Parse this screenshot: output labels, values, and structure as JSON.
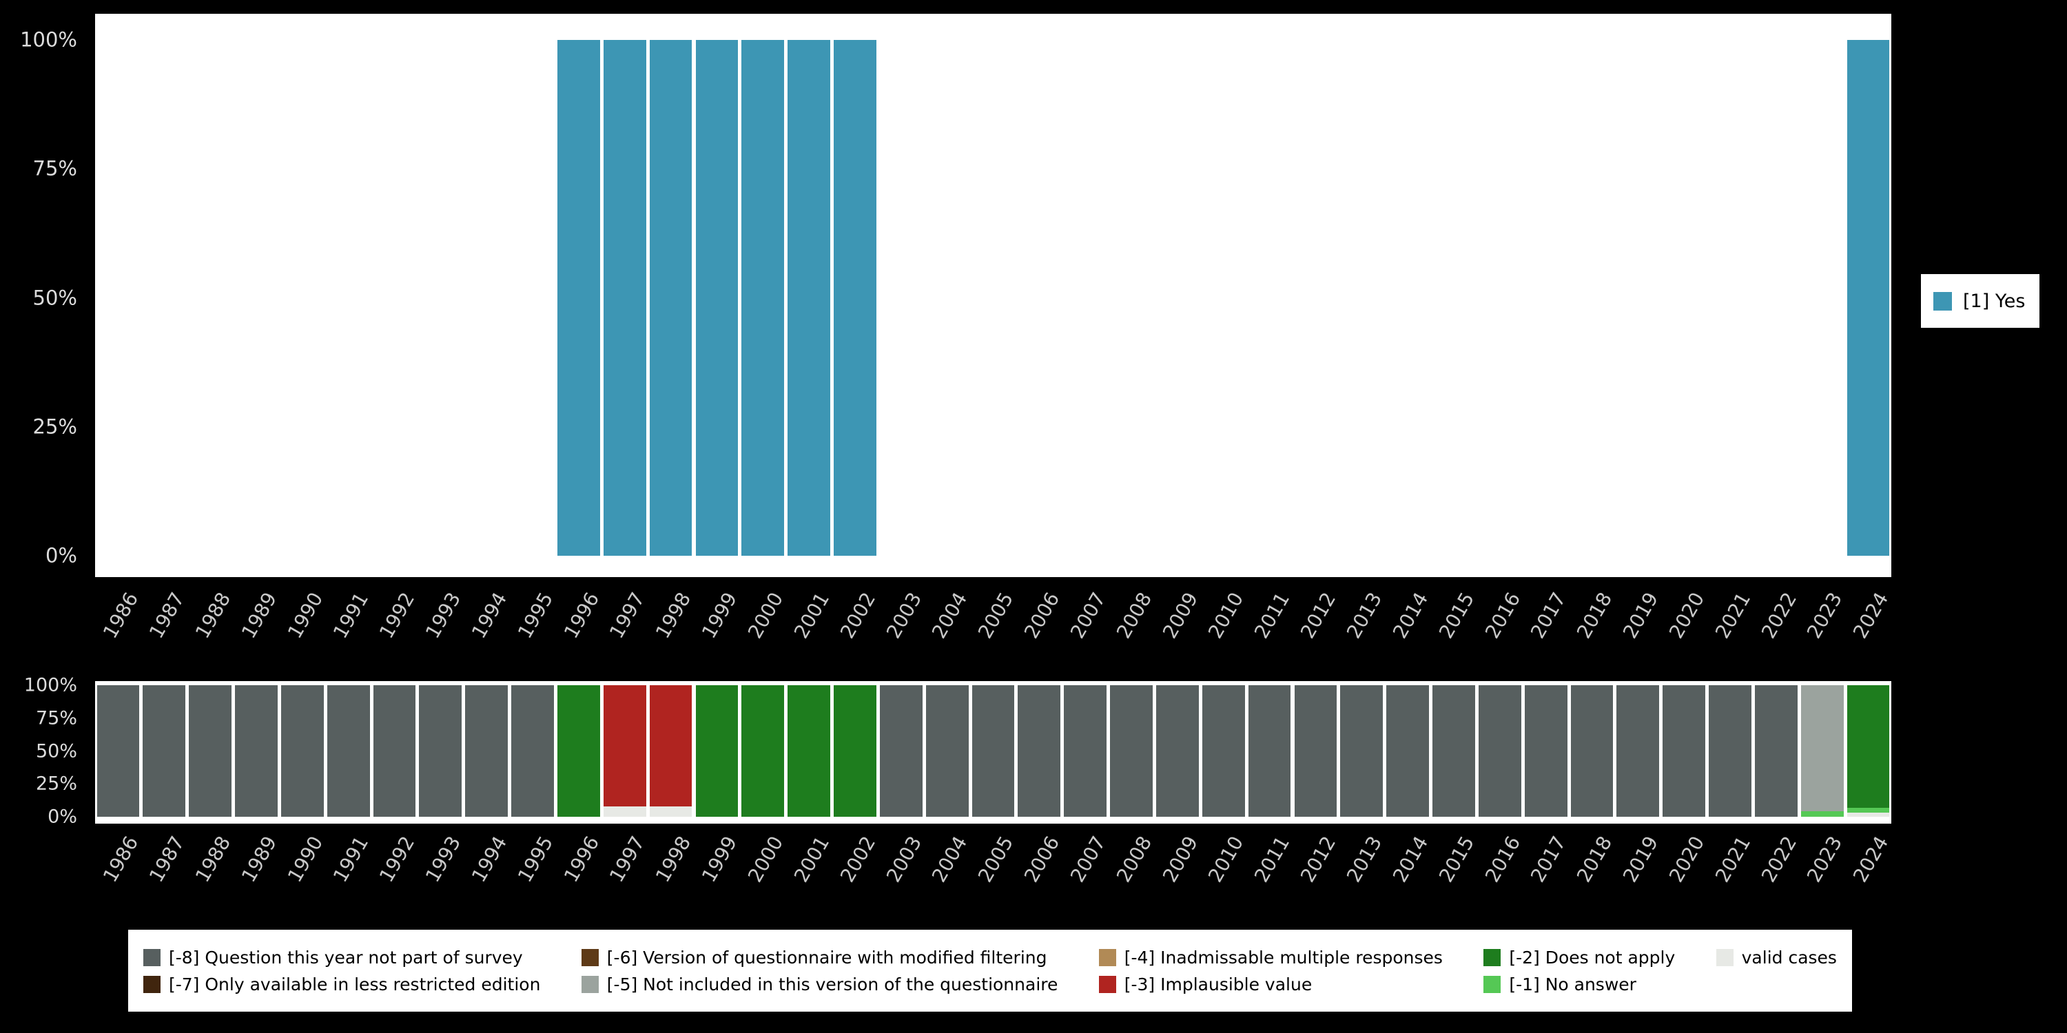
{
  "background": "#000000",
  "colors": {
    "yes": "#3d96b4",
    "m8": "#575f5f",
    "m7": "#40250e",
    "m6": "#5e3a17",
    "m5": "#9ba39e",
    "m4": "#b18a56",
    "m3": "#b02420",
    "m2": "#1e7d1e",
    "m1": "#55c855",
    "valid": "#e7e9e5"
  },
  "top_legend": {
    "label": "[1] Yes",
    "color_key": "yes"
  },
  "bottom_legend": {
    "items": [
      {
        "label": "[-8] Question this year not part of survey",
        "color_key": "m8"
      },
      {
        "label": "[-6] Version of questionnaire with modified filtering",
        "color_key": "m6"
      },
      {
        "label": "[-4] Inadmissable multiple responses",
        "color_key": "m4"
      },
      {
        "label": "[-2] Does not apply",
        "color_key": "m2"
      },
      {
        "label": "valid cases",
        "color_key": "valid"
      },
      {
        "label": "[-7] Only available in less restricted edition",
        "color_key": "m7"
      },
      {
        "label": "[-5] Not included in this version of the questionnaire",
        "color_key": "m5"
      },
      {
        "label": "[-3] Implausible value",
        "color_key": "m3"
      },
      {
        "label": "[-1] No answer",
        "color_key": "m1"
      }
    ]
  },
  "chart_data": [
    {
      "type": "bar",
      "title": "",
      "xlabel": "",
      "ylabel": "",
      "ylim": [
        0,
        100
      ],
      "grid": false,
      "legend_position": "right",
      "legend": [
        "[1] Yes"
      ],
      "yticks": [
        {
          "label": "0%",
          "value": 0
        },
        {
          "label": "25%",
          "value": 25
        },
        {
          "label": "50%",
          "value": 50
        },
        {
          "label": "75%",
          "value": 75
        },
        {
          "label": "100%",
          "value": 100
        }
      ],
      "x": [
        "1986",
        "1987",
        "1988",
        "1989",
        "1990",
        "1991",
        "1992",
        "1993",
        "1994",
        "1995",
        "1996",
        "1997",
        "1998",
        "1999",
        "2000",
        "2001",
        "2002",
        "2003",
        "2004",
        "2005",
        "2006",
        "2007",
        "2008",
        "2009",
        "2010",
        "2011",
        "2012",
        "2013",
        "2014",
        "2015",
        "2016",
        "2017",
        "2018",
        "2019",
        "2020",
        "2021",
        "2022",
        "2023",
        "2024"
      ],
      "series": [
        {
          "name": "[1] Yes",
          "color_key": "yes",
          "values": [
            0,
            0,
            0,
            0,
            0,
            0,
            0,
            0,
            0,
            0,
            100,
            100,
            100,
            100,
            100,
            100,
            100,
            0,
            0,
            0,
            0,
            0,
            0,
            0,
            0,
            0,
            0,
            0,
            0,
            0,
            0,
            0,
            0,
            0,
            0,
            0,
            0,
            0,
            100
          ]
        }
      ]
    },
    {
      "type": "bar",
      "title": "",
      "xlabel": "",
      "ylabel": "",
      "ylim": [
        0,
        100
      ],
      "grid": false,
      "legend_position": "bottom",
      "legend": [
        "[-8] Question this year not part of survey",
        "[-7] Only available in less restricted edition",
        "[-6] Version of questionnaire with modified filtering",
        "[-5] Not included in this version of the questionnaire",
        "[-4] Inadmissable multiple responses",
        "[-3] Implausible value",
        "[-2] Does not apply",
        "[-1] No answer",
        "valid cases"
      ],
      "yticks": [
        {
          "label": "0%",
          "value": 0
        },
        {
          "label": "25%",
          "value": 25
        },
        {
          "label": "50%",
          "value": 50
        },
        {
          "label": "75%",
          "value": 75
        },
        {
          "label": "100%",
          "value": 100
        }
      ],
      "x": [
        "1986",
        "1987",
        "1988",
        "1989",
        "1990",
        "1991",
        "1992",
        "1993",
        "1994",
        "1995",
        "1996",
        "1997",
        "1998",
        "1999",
        "2000",
        "2001",
        "2002",
        "2003",
        "2004",
        "2005",
        "2006",
        "2007",
        "2008",
        "2009",
        "2010",
        "2011",
        "2012",
        "2013",
        "2014",
        "2015",
        "2016",
        "2017",
        "2018",
        "2019",
        "2020",
        "2021",
        "2022",
        "2023",
        "2024"
      ],
      "series": [
        {
          "name": "valid cases",
          "color_key": "valid",
          "values": [
            0,
            0,
            0,
            0,
            0,
            0,
            0,
            0,
            0,
            0,
            0,
            8,
            8,
            0,
            0,
            0,
            0,
            0,
            0,
            0,
            0,
            0,
            0,
            0,
            0,
            0,
            0,
            0,
            0,
            0,
            0,
            0,
            0,
            0,
            0,
            0,
            0,
            0,
            3
          ]
        },
        {
          "name": "[-1] No answer",
          "color_key": "m1",
          "values": [
            0,
            0,
            0,
            0,
            0,
            0,
            0,
            0,
            0,
            0,
            0,
            0,
            0,
            0,
            0,
            0,
            0,
            0,
            0,
            0,
            0,
            0,
            0,
            0,
            0,
            0,
            0,
            0,
            0,
            0,
            0,
            0,
            0,
            0,
            0,
            0,
            0,
            4,
            4
          ]
        },
        {
          "name": "[-2] Does not apply",
          "color_key": "m2",
          "values": [
            0,
            0,
            0,
            0,
            0,
            0,
            0,
            0,
            0,
            0,
            100,
            0,
            0,
            100,
            100,
            100,
            100,
            0,
            0,
            0,
            0,
            0,
            0,
            0,
            0,
            0,
            0,
            0,
            0,
            0,
            0,
            0,
            0,
            0,
            0,
            0,
            0,
            0,
            93
          ]
        },
        {
          "name": "[-3] Implausible value",
          "color_key": "m3",
          "values": [
            0,
            0,
            0,
            0,
            0,
            0,
            0,
            0,
            0,
            0,
            0,
            92,
            92,
            0,
            0,
            0,
            0,
            0,
            0,
            0,
            0,
            0,
            0,
            0,
            0,
            0,
            0,
            0,
            0,
            0,
            0,
            0,
            0,
            0,
            0,
            0,
            0,
            0,
            0
          ]
        },
        {
          "name": "[-5] Not included in this version of the questionnaire",
          "color_key": "m5",
          "values": [
            0,
            0,
            0,
            0,
            0,
            0,
            0,
            0,
            0,
            0,
            0,
            0,
            0,
            0,
            0,
            0,
            0,
            0,
            0,
            0,
            0,
            0,
            0,
            0,
            0,
            0,
            0,
            0,
            0,
            0,
            0,
            0,
            0,
            0,
            0,
            0,
            0,
            96,
            0
          ]
        },
        {
          "name": "[-8] Question this year not part of survey",
          "color_key": "m8",
          "values": [
            100,
            100,
            100,
            100,
            100,
            100,
            100,
            100,
            100,
            100,
            0,
            0,
            0,
            0,
            0,
            0,
            0,
            100,
            100,
            100,
            100,
            100,
            100,
            100,
            100,
            100,
            100,
            100,
            100,
            100,
            100,
            100,
            100,
            100,
            100,
            100,
            100,
            0,
            0
          ]
        }
      ]
    }
  ]
}
